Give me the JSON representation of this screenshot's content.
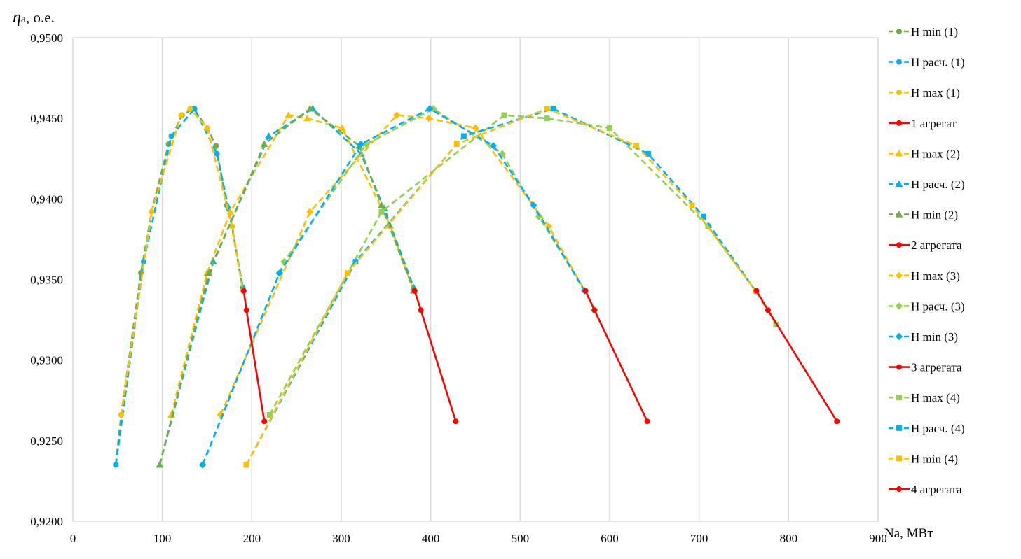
{
  "chart_data": {
    "type": "line",
    "xlabel": "Na, МВт",
    "ylabel_symbol": "η",
    "ylabel_sub": "a",
    "ylabel_rest": ", о.е.",
    "xlim": [
      0,
      900
    ],
    "ylim": [
      0.92,
      0.95
    ],
    "xticks": [
      0,
      100,
      200,
      300,
      400,
      500,
      600,
      700,
      800,
      900
    ],
    "xtick_labels": [
      "0",
      "100",
      "200",
      "300",
      "400",
      "500",
      "600",
      "700",
      "800",
      "900"
    ],
    "yticks": [
      0.92,
      0.925,
      0.93,
      0.935,
      0.94,
      0.945,
      0.95
    ],
    "ytick_labels": [
      "0,9200",
      "0,9250",
      "0,9300",
      "0,9350",
      "0,9400",
      "0,9450",
      "0,9500"
    ],
    "grid": "vertical",
    "legend_position": "right",
    "colors": {
      "green": "#70AD47",
      "blue": "#00B0F0",
      "yellow": "#FFC000",
      "red": "#FF0000"
    },
    "series": [
      {
        "name": "H min (1)",
        "color": "#70AD47",
        "dash": true,
        "marker": "circle",
        "points": [
          [
            48,
            0.9235
          ],
          [
            54,
            0.9266
          ],
          [
            76,
            0.9354
          ],
          [
            88,
            0.9392
          ],
          [
            107,
            0.9434
          ],
          [
            122,
            0.9452
          ],
          [
            135,
            0.9456
          ],
          [
            150,
            0.9444
          ],
          [
            160,
            0.9433
          ],
          [
            172,
            0.9396
          ],
          [
            178,
            0.9383
          ],
          [
            190,
            0.9343
          ]
        ]
      },
      {
        "name": "H расч. (1)",
        "color": "#00B0F0",
        "dash": true,
        "marker": "circle",
        "points": [
          [
            48,
            0.9235
          ],
          [
            79,
            0.9361
          ],
          [
            110,
            0.9439
          ],
          [
            136,
            0.9456
          ],
          [
            161,
            0.9428
          ],
          [
            174,
            0.9394
          ],
          [
            190,
            0.9345
          ]
        ]
      },
      {
        "name": "H max (1)",
        "color": "#FFC000",
        "dash": true,
        "marker": "circle",
        "points": [
          [
            54,
            0.9266
          ],
          [
            88,
            0.9392
          ],
          [
            121,
            0.9452
          ],
          [
            131,
            0.9456
          ],
          [
            150,
            0.9444
          ],
          [
            178,
            0.9383
          ],
          [
            190,
            0.9343
          ]
        ]
      },
      {
        "name": "1 агрегат",
        "color": "#FF0000",
        "dash": false,
        "marker": "circle",
        "points": [
          [
            191,
            0.9343
          ],
          [
            194,
            0.9331
          ],
          [
            214,
            0.9262
          ]
        ]
      },
      {
        "name": "H max (2)",
        "color": "#FFC000",
        "dash": true,
        "marker": "triangle",
        "points": [
          [
            110,
            0.9266
          ],
          [
            150,
            0.9354
          ],
          [
            176,
            0.9392
          ],
          [
            241,
            0.9452
          ],
          [
            262,
            0.945
          ],
          [
            301,
            0.9444
          ],
          [
            355,
            0.9383
          ],
          [
            381,
            0.9343
          ]
        ]
      },
      {
        "name": "H расч. (2)",
        "color": "#00B0F0",
        "dash": true,
        "marker": "triangle",
        "points": [
          [
            97,
            0.9235
          ],
          [
            157,
            0.9361
          ],
          [
            219,
            0.9439
          ],
          [
            268,
            0.9456
          ],
          [
            322,
            0.9428
          ],
          [
            348,
            0.9394
          ],
          [
            381,
            0.9345
          ]
        ]
      },
      {
        "name": "H min (2)",
        "color": "#70AD47",
        "dash": true,
        "marker": "triangle",
        "points": [
          [
            97,
            0.9235
          ],
          [
            152,
            0.9354
          ],
          [
            214,
            0.9434
          ],
          [
            265,
            0.9456
          ],
          [
            320,
            0.9433
          ],
          [
            345,
            0.9396
          ],
          [
            381,
            0.9343
          ]
        ]
      },
      {
        "name": "2 агрегата",
        "color": "#FF0000",
        "dash": false,
        "marker": "circle",
        "points": [
          [
            382,
            0.9343
          ],
          [
            389,
            0.9331
          ],
          [
            428,
            0.9262
          ]
        ]
      },
      {
        "name": "H max (3)",
        "color": "#FFC000",
        "dash": true,
        "marker": "diamond",
        "points": [
          [
            165,
            0.9266
          ],
          [
            265,
            0.9392
          ],
          [
            362,
            0.9452
          ],
          [
            398,
            0.945
          ],
          [
            450,
            0.9444
          ],
          [
            532,
            0.9383
          ],
          [
            572,
            0.9343
          ]
        ]
      },
      {
        "name": "H расч. (3)",
        "color": "#92D050",
        "dash": true,
        "marker": "diamond",
        "points": [
          [
            145,
            0.9235
          ],
          [
            236,
            0.9361
          ],
          [
            328,
            0.9434
          ],
          [
            403,
            0.9456
          ],
          [
            480,
            0.9428
          ],
          [
            521,
            0.9389
          ],
          [
            572,
            0.9343
          ],
          [
            583,
            0.9331
          ]
        ]
      },
      {
        "name": "H min (3)",
        "color": "#00B0F0",
        "dash": true,
        "marker": "diamond",
        "points": [
          [
            145,
            0.9235
          ],
          [
            231,
            0.9354
          ],
          [
            322,
            0.9434
          ],
          [
            399,
            0.9456
          ],
          [
            470,
            0.9433
          ],
          [
            515,
            0.9396
          ],
          [
            572,
            0.9343
          ]
        ]
      },
      {
        "name": "3 агрегата",
        "color": "#FF0000",
        "dash": false,
        "marker": "circle",
        "points": [
          [
            573,
            0.9343
          ],
          [
            583,
            0.9331
          ],
          [
            642,
            0.9262
          ]
        ]
      },
      {
        "name": "H max (4)",
        "color": "#92D050",
        "dash": true,
        "marker": "square",
        "points": [
          [
            220,
            0.9266
          ],
          [
            345,
            0.9392
          ],
          [
            482,
            0.9452
          ],
          [
            530,
            0.945
          ],
          [
            600,
            0.9444
          ],
          [
            710,
            0.9383
          ],
          [
            763,
            0.9343
          ],
          [
            786,
            0.9322
          ]
        ]
      },
      {
        "name": "H расч. (4)",
        "color": "#00B0F0",
        "dash": true,
        "marker": "square",
        "points": [
          [
            194,
            0.9235
          ],
          [
            316,
            0.9361
          ],
          [
            437,
            0.9439
          ],
          [
            537,
            0.9456
          ],
          [
            643,
            0.9428
          ],
          [
            705,
            0.9389
          ],
          [
            763,
            0.9343
          ]
        ]
      },
      {
        "name": "H min (4)",
        "color": "#FFC000",
        "dash": true,
        "marker": "square",
        "points": [
          [
            194,
            0.9235
          ],
          [
            307,
            0.9354
          ],
          [
            429,
            0.9434
          ],
          [
            530,
            0.9456
          ],
          [
            630,
            0.9433
          ],
          [
            692,
            0.9396
          ],
          [
            763,
            0.9343
          ]
        ]
      },
      {
        "name": "4 агрегата",
        "color": "#FF0000",
        "dash": false,
        "marker": "circle",
        "points": [
          [
            764,
            0.9343
          ],
          [
            777,
            0.9331
          ],
          [
            854,
            0.9262
          ]
        ]
      }
    ]
  }
}
